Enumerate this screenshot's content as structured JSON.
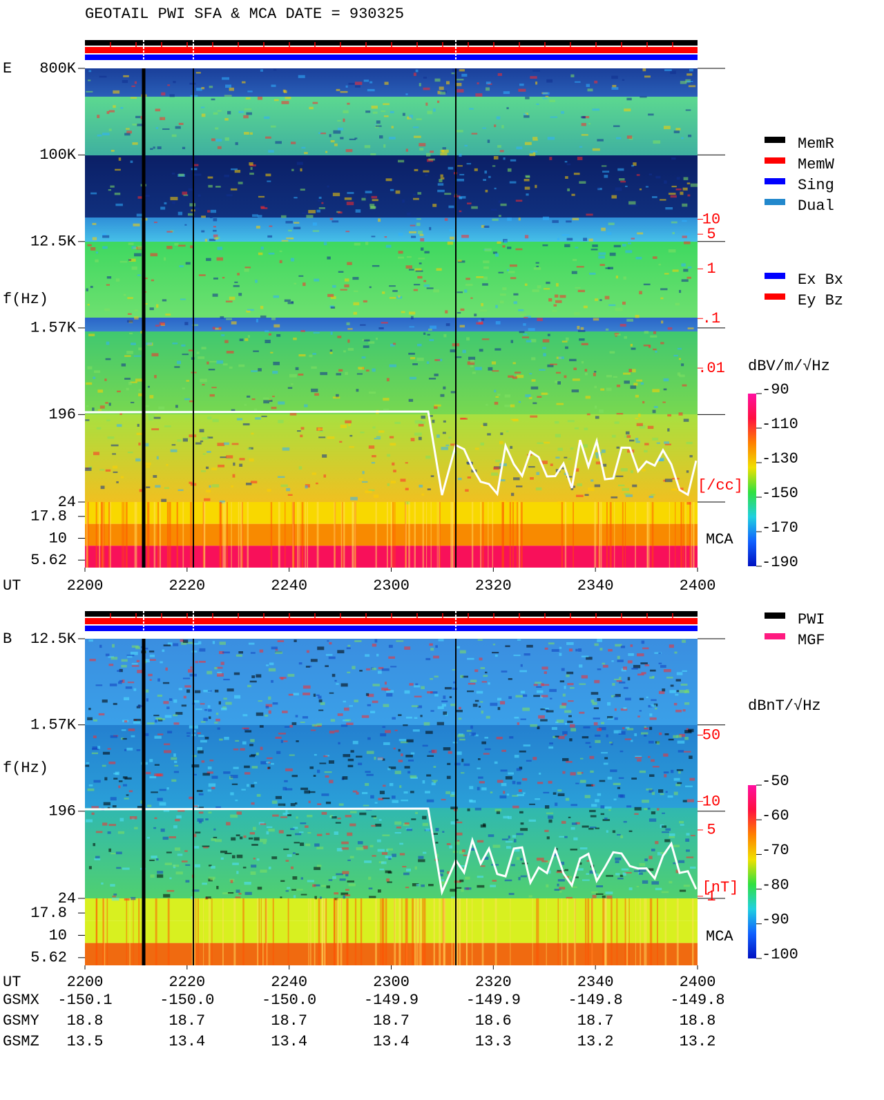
{
  "title": "GEOTAIL  PWI SFA & MCA   DATE = 930325",
  "legend_modes": [
    {
      "name": "MemR",
      "color": "#000000"
    },
    {
      "name": "MemW",
      "color": "#ff0000"
    },
    {
      "name": "Sing",
      "color": "#0000ff"
    },
    {
      "name": "Dual",
      "color": "#2288cc"
    }
  ],
  "legend_components": [
    {
      "name": "Ex Bx",
      "color": "#0000ff"
    },
    {
      "name": "Ey Bz",
      "color": "#ff0000"
    }
  ],
  "legend_sources": [
    {
      "name": "PWI",
      "color": "#000000"
    },
    {
      "name": "MGF",
      "color": "#ff1a80"
    }
  ],
  "chart_data": [
    {
      "type": "spectrogram",
      "panel_label": "E",
      "ylabel": "f(Hz)",
      "yscale": "log",
      "ylim": [
        24,
        800000
      ],
      "yticks": [
        {
          "value": 800000,
          "label": "800K"
        },
        {
          "value": 100000,
          "label": "100K"
        },
        {
          "value": 12500,
          "label": "12.5K"
        },
        {
          "value": 1570,
          "label": "1.57K"
        },
        196,
        24
      ],
      "mca_label": "MCA",
      "mca_channels": [
        "17.8",
        "10",
        "5.62"
      ],
      "y2_label": "[/cc]",
      "y2lim": [
        2e-05,
        11000
      ],
      "y2ticks": [
        10,
        5,
        1,
        {
          "value": 0.1,
          "label": ".1"
        },
        {
          "value": 0.01,
          "label": ".01"
        }
      ],
      "xlabel": "UT",
      "categories": [
        "2200",
        "2220",
        "2240",
        "2300",
        "2320",
        "2340",
        "2400"
      ],
      "colorbar": {
        "label": "dBV/m/√Hz",
        "clim": [
          -190,
          -90
        ],
        "ticks": [
          -90,
          -110,
          -130,
          -150,
          -170,
          -190
        ]
      }
    },
    {
      "type": "spectrogram",
      "panel_label": "B",
      "ylabel": "f(Hz)",
      "yscale": "log",
      "ylim": [
        24,
        12500
      ],
      "yticks": [
        {
          "value": 12500,
          "label": "12.5K"
        },
        {
          "value": 1570,
          "label": "1.57K"
        },
        196,
        24
      ],
      "mca_label": "MCA",
      "mca_channels": [
        "17.8",
        "10",
        "5.62"
      ],
      "y2_label": "[nT]",
      "y2lim": [
        0.95,
        519
      ],
      "y2ticks": [
        50,
        10,
        5,
        1
      ],
      "xlabel": "UT",
      "categories": [
        "2200",
        "2220",
        "2240",
        "2300",
        "2320",
        "2340",
        "2400"
      ],
      "colorbar": {
        "label": "dBnT/√Hz",
        "clim": [
          -100,
          -50
        ],
        "ticks": [
          -50,
          -60,
          -70,
          -80,
          -90,
          -100
        ]
      }
    }
  ],
  "orbit": {
    "rows": [
      {
        "name": "GSMX",
        "values": [
          "-150.1",
          "-150.0",
          "-150.0",
          "-149.9",
          "-149.9",
          "-149.8",
          "-149.8"
        ]
      },
      {
        "name": "GSMY",
        "values": [
          "18.8",
          "18.7",
          "18.7",
          "18.7",
          "18.6",
          "18.7",
          "18.8"
        ]
      },
      {
        "name": "GSMZ",
        "values": [
          "13.5",
          "13.4",
          "13.4",
          "13.4",
          "13.3",
          "13.2",
          "13.2"
        ]
      }
    ]
  }
}
